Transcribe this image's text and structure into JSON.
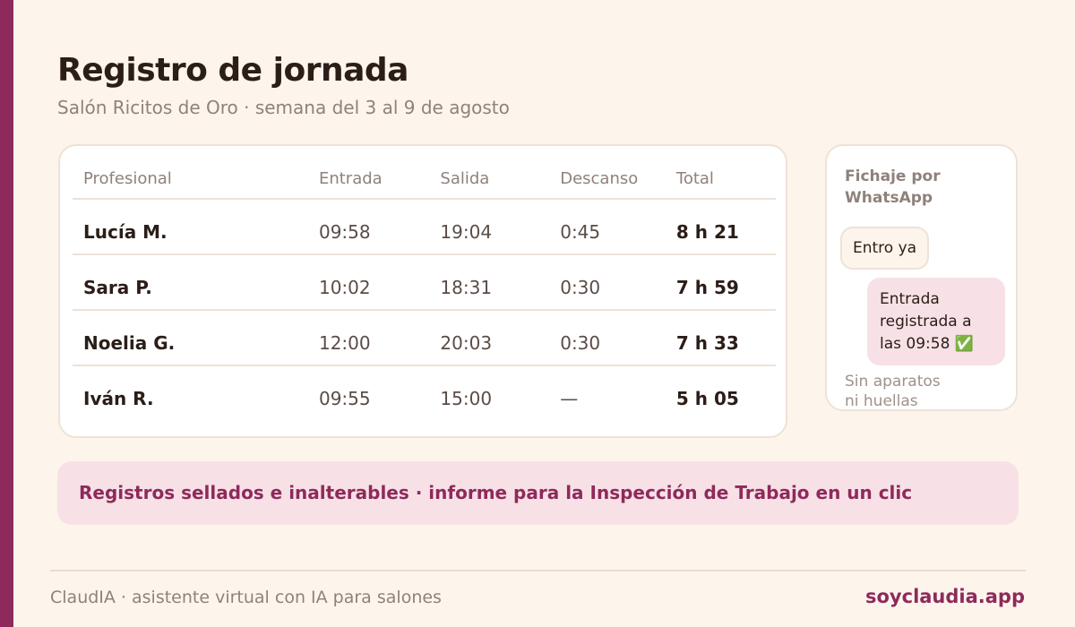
{
  "header": {
    "title": "Registro de jornada",
    "subtitle": "Salón Ricitos de Oro · semana del 3 al 9 de agosto"
  },
  "table": {
    "columns": [
      "Profesional",
      "Entrada",
      "Salida",
      "Descanso",
      "Total"
    ],
    "rows": [
      [
        "Lucía M.",
        "09:58",
        "19:04",
        "0:45",
        "8 h 21"
      ],
      [
        "Sara P.",
        "10:02",
        "18:31",
        "0:30",
        "7 h 59"
      ],
      [
        "Noelia G.",
        "12:00",
        "20:03",
        "0:30",
        "7 h 33"
      ],
      [
        "Iván R.",
        "09:55",
        "15:00",
        "—",
        "5 h 05"
      ]
    ]
  },
  "chat": {
    "title": "Fichaje por WhatsApp",
    "messages": [
      "Entro ya",
      "Entrada registrada a las 09:58 ✅"
    ],
    "note": "Sin aparatos ni huellas"
  },
  "banner": "Registros sellados e inalterables · informe para la Inspección de Trabajo en un clic",
  "footer": {
    "text": "ClaudIA · asistente virtual con IA para salones",
    "link": "soyclaudia.app"
  }
}
